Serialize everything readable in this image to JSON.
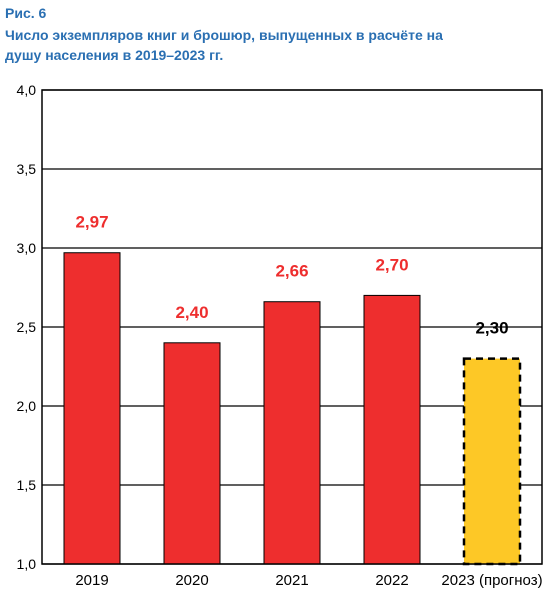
{
  "figure": {
    "label": "Рис. 6",
    "title": "Число экземпляров книг и брошюр, выпущенных в расчёте на душу населения в 2019–2023 гг."
  },
  "chart_data": {
    "type": "bar",
    "categories": [
      "2019",
      "2020",
      "2021",
      "2022",
      "2023 (прогноз)"
    ],
    "values": [
      2.97,
      2.4,
      2.66,
      2.7,
      2.3
    ],
    "value_labels": [
      "2,97",
      "2,40",
      "2,66",
      "2,70",
      "2,30"
    ],
    "forecast_index": 4,
    "ylim": [
      1.0,
      4.0
    ],
    "yticks": [
      1.0,
      1.5,
      2.0,
      2.5,
      3.0,
      3.5,
      4.0
    ],
    "ytick_labels": [
      "1,0",
      "1,5",
      "2,0",
      "2,5",
      "3,0",
      "3,5",
      "4,0"
    ],
    "grid": true,
    "colors": {
      "actual_bar": "#ee2e2e",
      "forecast_bar": "#fdc826",
      "actual_label": "#ee2e2e",
      "forecast_label": "#000000",
      "title": "#2a6fb2"
    }
  }
}
